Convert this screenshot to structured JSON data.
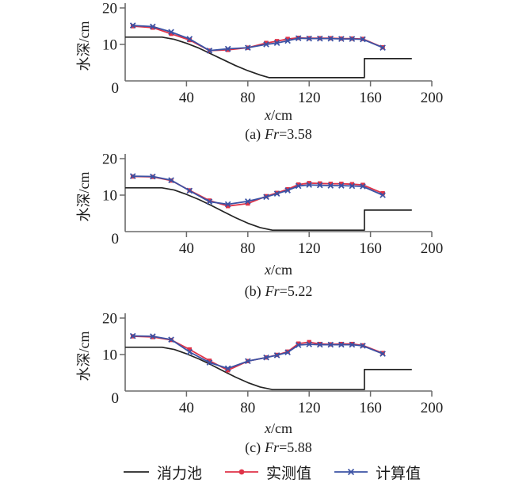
{
  "figure": {
    "background": "#ffffff"
  },
  "colors": {
    "basin": "#242424",
    "measured": "#df3348",
    "calculated": "#3b52a4",
    "axis": "#6b6b6b",
    "text": "#1a1a1a"
  },
  "legend": {
    "items": [
      {
        "key": "basin",
        "label": "消力池",
        "marker": "line"
      },
      {
        "key": "measured",
        "label": "实测值",
        "marker": "line-dot"
      },
      {
        "key": "calculated",
        "label": "计算值",
        "marker": "line-x"
      }
    ]
  },
  "chart_data": [
    {
      "type": "line",
      "caption": {
        "index": "(a)",
        "fr_label": "Fr",
        "fr_value": "=3.58"
      },
      "xlabel": {
        "var": "x",
        "unit": "/cm"
      },
      "ylabel": "水深/cm",
      "xlim": [
        0,
        200
      ],
      "ylim": [
        0,
        20
      ],
      "x_ticks": [
        40,
        80,
        120,
        160,
        200
      ],
      "y_ticks": [
        10,
        20
      ],
      "origin_label": "0",
      "grid": false,
      "series": [
        {
          "key": "basin",
          "name": "消力池",
          "x": [
            0,
            24,
            32,
            40,
            48,
            56,
            64,
            72,
            80,
            88,
            94,
            156,
            156,
            187
          ],
          "y": [
            12,
            12,
            11.4,
            10.3,
            9.0,
            7.4,
            5.8,
            4.2,
            2.8,
            1.6,
            0.9,
            0.9,
            6.1,
            6.1
          ]
        },
        {
          "key": "measured",
          "name": "实测值",
          "x": [
            5,
            18,
            30,
            42,
            55,
            67,
            80,
            92,
            99,
            106,
            113,
            120,
            127,
            134,
            141,
            148,
            155,
            168
          ],
          "y": [
            15.0,
            14.6,
            12.9,
            11.2,
            8.3,
            8.5,
            9.1,
            10.4,
            10.9,
            11.5,
            11.8,
            11.7,
            11.7,
            11.7,
            11.6,
            11.6,
            11.5,
            9.2
          ]
        },
        {
          "key": "calculated",
          "name": "计算值",
          "x": [
            5,
            18,
            30,
            42,
            55,
            67,
            80,
            92,
            99,
            106,
            113,
            120,
            127,
            134,
            141,
            148,
            155,
            168
          ],
          "y": [
            15.2,
            14.9,
            13.4,
            11.5,
            8.3,
            8.8,
            9.1,
            10.0,
            10.4,
            11.0,
            11.7,
            11.6,
            11.6,
            11.6,
            11.5,
            11.5,
            11.4,
            9.1
          ]
        }
      ]
    },
    {
      "type": "line",
      "caption": {
        "index": "(b)",
        "fr_label": "Fr",
        "fr_value": "=5.22"
      },
      "xlabel": {
        "var": "x",
        "unit": "/cm"
      },
      "ylabel": "水深/cm",
      "xlim": [
        0,
        200
      ],
      "ylim": [
        0,
        20
      ],
      "x_ticks": [
        40,
        80,
        120,
        160,
        200
      ],
      "y_ticks": [
        10,
        20
      ],
      "origin_label": "0",
      "grid": false,
      "series": [
        {
          "key": "basin",
          "name": "消力池",
          "x": [
            0,
            24,
            32,
            40,
            48,
            56,
            64,
            72,
            80,
            88,
            96,
            156,
            156,
            187
          ],
          "y": [
            12,
            12,
            11.4,
            10.2,
            8.8,
            7.2,
            5.5,
            3.8,
            2.3,
            1.1,
            0.4,
            0.4,
            5.9,
            5.9
          ]
        },
        {
          "key": "measured",
          "name": "实测值",
          "x": [
            5,
            18,
            30,
            42,
            55,
            67,
            80,
            92,
            99,
            106,
            113,
            120,
            127,
            134,
            141,
            148,
            155,
            168
          ],
          "y": [
            15.1,
            15.0,
            14.0,
            11.3,
            8.5,
            7.0,
            7.7,
            9.7,
            10.6,
            11.6,
            12.9,
            13.3,
            13.2,
            13.1,
            13.1,
            13.0,
            12.8,
            10.5
          ]
        },
        {
          "key": "calculated",
          "name": "计算值",
          "x": [
            5,
            18,
            30,
            42,
            55,
            67,
            80,
            92,
            99,
            106,
            113,
            120,
            127,
            134,
            141,
            148,
            155,
            168
          ],
          "y": [
            15.2,
            15.1,
            14.1,
            11.2,
            8.2,
            7.5,
            8.3,
            9.5,
            10.4,
            11.3,
            12.5,
            12.8,
            12.7,
            12.6,
            12.6,
            12.5,
            12.4,
            10.0
          ]
        }
      ]
    },
    {
      "type": "line",
      "caption": {
        "index": "(c)",
        "fr_label": "Fr",
        "fr_value": "=5.88"
      },
      "xlabel": {
        "var": "x",
        "unit": "/cm"
      },
      "ylabel": "水深/cm",
      "xlim": [
        0,
        200
      ],
      "ylim": [
        0,
        20
      ],
      "x_ticks": [
        40,
        80,
        120,
        160,
        200
      ],
      "y_ticks": [
        10,
        20
      ],
      "origin_label": "0",
      "grid": false,
      "series": [
        {
          "key": "basin",
          "name": "消力池",
          "x": [
            0,
            24,
            32,
            40,
            48,
            56,
            64,
            72,
            80,
            88,
            96,
            156,
            156,
            187
          ],
          "y": [
            12,
            12,
            11.4,
            10.2,
            8.8,
            7.2,
            5.5,
            3.8,
            2.3,
            1.1,
            0.4,
            0.4,
            5.9,
            5.9
          ]
        },
        {
          "key": "measured",
          "name": "实测值",
          "x": [
            5,
            18,
            30,
            42,
            55,
            67,
            80,
            92,
            99,
            106,
            113,
            120,
            127,
            134,
            141,
            148,
            155,
            168
          ],
          "y": [
            15.0,
            14.8,
            14.0,
            11.4,
            8.3,
            5.7,
            8.2,
            9.2,
            9.9,
            10.8,
            13.0,
            13.4,
            12.9,
            12.8,
            12.9,
            12.9,
            12.5,
            10.4
          ]
        },
        {
          "key": "calculated",
          "name": "计算值",
          "x": [
            5,
            18,
            30,
            42,
            55,
            67,
            80,
            92,
            99,
            106,
            113,
            120,
            127,
            134,
            141,
            148,
            155,
            168
          ],
          "y": [
            15.1,
            15.0,
            14.1,
            10.7,
            7.8,
            6.2,
            8.2,
            9.2,
            9.8,
            10.6,
            12.6,
            12.8,
            12.7,
            12.7,
            12.7,
            12.7,
            12.4,
            10.2
          ]
        }
      ]
    }
  ]
}
